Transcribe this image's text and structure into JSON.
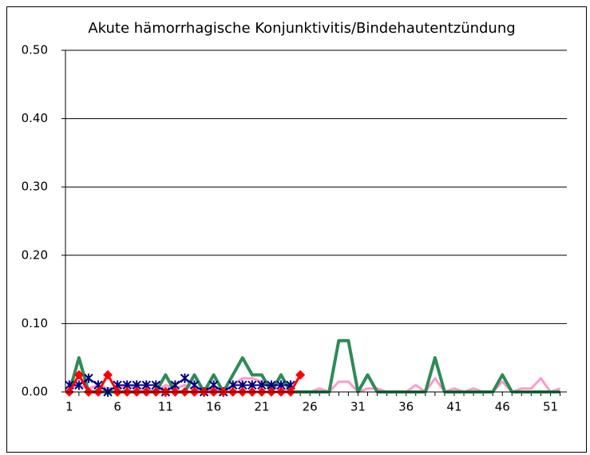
{
  "chart_data": {
    "type": "line",
    "title": "Akute hämorrhagische  Konjunktivitis/Bindehautentzündung",
    "x": [
      1,
      2,
      3,
      4,
      5,
      6,
      7,
      8,
      9,
      10,
      11,
      12,
      13,
      14,
      15,
      16,
      17,
      18,
      19,
      20,
      21,
      22,
      23,
      24,
      25,
      26,
      27,
      28,
      29,
      30,
      31,
      32,
      33,
      34,
      35,
      36,
      37,
      38,
      39,
      40,
      41,
      42,
      43,
      44,
      45,
      46,
      47,
      48,
      49,
      50,
      51,
      52
    ],
    "xlim": [
      0.6,
      52.7
    ],
    "xticks": [
      1,
      6,
      11,
      16,
      21,
      26,
      31,
      36,
      41,
      46,
      51
    ],
    "ylim": [
      0,
      0.5
    ],
    "yticks": [
      {
        "value": 0,
        "label": "0.00"
      },
      {
        "value": 0.1,
        "label": "0.10"
      },
      {
        "value": 0.2,
        "label": "0.20"
      },
      {
        "value": 0.3,
        "label": "0.30"
      },
      {
        "value": 0.4,
        "label": "0.40"
      },
      {
        "value": 0.5,
        "label": "0.50"
      }
    ],
    "grid": true,
    "series": [
      {
        "color": "#ff99cc",
        "marker": "none",
        "width": 3,
        "values": [
          0.005,
          0.01,
          0.005,
          0.01,
          0.005,
          0.005,
          0.01,
          0.005,
          0.005,
          0,
          0.01,
          0.005,
          0.01,
          0.005,
          0,
          0.005,
          0,
          0.01,
          0.02,
          0.02,
          0.015,
          0.005,
          0.005,
          0,
          0,
          0,
          0.005,
          0,
          0.015,
          0.015,
          0,
          0.005,
          0.005,
          0,
          0,
          0,
          0.01,
          0,
          0.02,
          0,
          0.005,
          0,
          0.005,
          0,
          0,
          0.015,
          0,
          0.005,
          0.005,
          0.02,
          0,
          0.005
        ]
      },
      {
        "color": "#2e8b57",
        "marker": "none",
        "width": 4,
        "values": [
          0,
          0.05,
          0,
          0,
          0,
          0,
          0,
          0,
          0,
          0,
          0.025,
          0,
          0,
          0.025,
          0,
          0.025,
          0,
          0.025,
          0.05,
          0.025,
          0.025,
          0,
          0.025,
          0,
          0,
          0,
          0,
          0,
          0.075,
          0.075,
          0,
          0.025,
          0,
          0,
          0,
          0,
          0,
          0,
          0.05,
          0,
          0,
          0,
          0,
          0,
          0,
          0.025,
          0,
          0,
          0,
          0,
          0,
          0
        ]
      },
      {
        "color": "#000080",
        "marker": "star",
        "width": 2,
        "values": [
          0.01,
          0.01,
          0.02,
          0.01,
          0,
          0.01,
          0.01,
          0.01,
          0.01,
          0.01,
          0,
          0.01,
          0.02,
          0.01,
          0,
          0.01,
          0,
          0.01,
          0.01,
          0.01,
          0.01,
          0.01,
          0.01,
          0.01,
          null,
          null,
          null,
          null,
          null,
          null,
          null,
          null,
          null,
          null,
          null,
          null,
          null,
          null,
          null,
          null,
          null,
          null,
          null,
          null,
          null,
          null,
          null,
          null,
          null,
          null,
          null,
          null
        ]
      },
      {
        "color": "#ff0000",
        "marker": "diamond",
        "width": 3,
        "values": [
          0,
          0.025,
          0,
          0,
          0.025,
          0,
          0,
          0,
          0,
          0,
          0,
          0,
          0,
          0,
          0,
          0,
          0,
          0,
          0,
          0,
          0,
          0,
          0,
          0,
          0.025,
          null,
          null,
          null,
          null,
          null,
          null,
          null,
          null,
          null,
          null,
          null,
          null,
          null,
          null,
          null,
          null,
          null,
          null,
          null,
          null,
          null,
          null,
          null,
          null,
          null,
          null,
          null
        ]
      }
    ]
  }
}
